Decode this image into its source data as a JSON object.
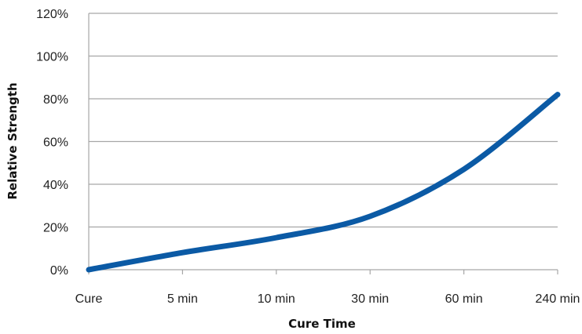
{
  "chart_data": {
    "type": "line",
    "title": "",
    "xlabel": "Cure Time",
    "ylabel": "Relative Strength",
    "categories": [
      "Cure",
      "5 min",
      "10 min",
      "30 min",
      "60 min",
      "240 min"
    ],
    "y_ticks": [
      "0%",
      "20%",
      "40%",
      "60%",
      "80%",
      "100%",
      "120%"
    ],
    "ylim": [
      0,
      120
    ],
    "grid": true,
    "legend": "none",
    "series": [
      {
        "color": "#0b5aa5",
        "values": [
          0,
          8,
          15,
          25,
          47,
          82
        ]
      }
    ]
  }
}
